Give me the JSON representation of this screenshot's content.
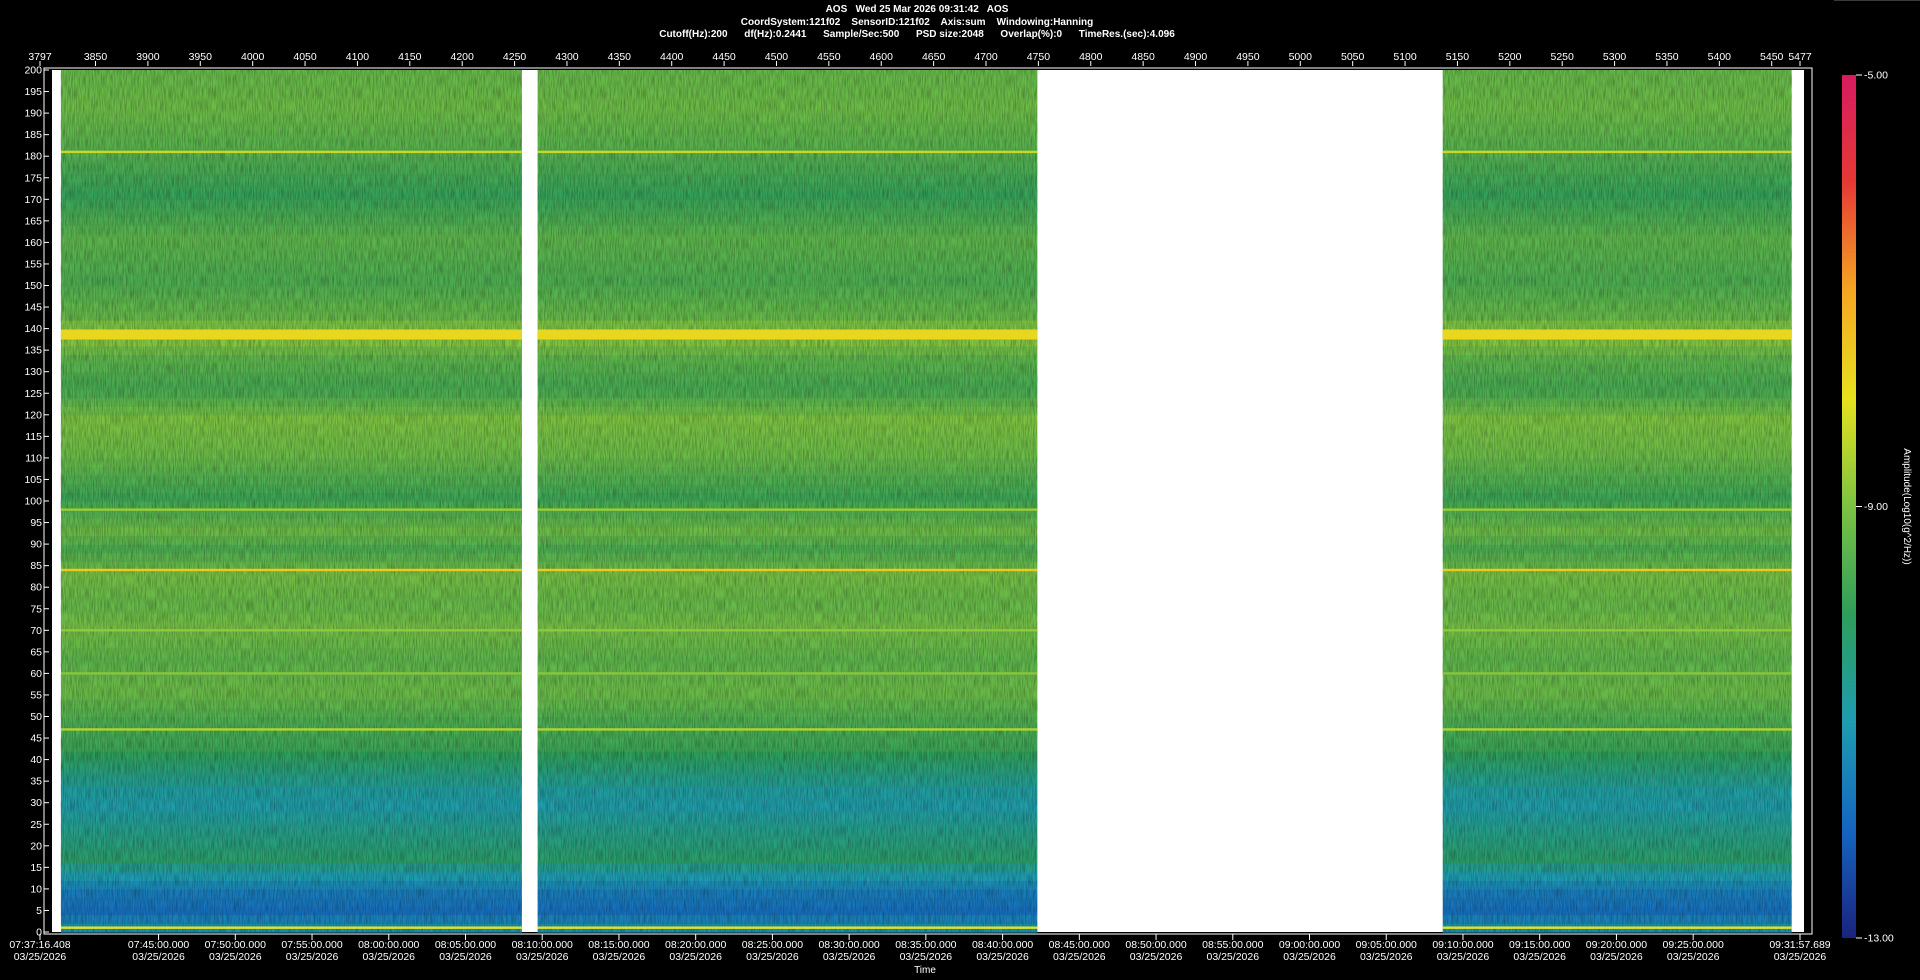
{
  "header": {
    "line1": "AOS   Wed 25 Mar 2026 09:31:42   AOS",
    "line2": "CoordSystem:121f02    SensorID:121f02    Axis:sum    Windowing:Hanning",
    "line3": "Cutoff(Hz):200      df(Hz):0.2441      Sample/Sec:500      PSD size:2048      Overlap(%):0      TimeRes.(sec):4.096"
  },
  "chart_data": {
    "type": "heatmap",
    "title": "AOS   Wed 25 Mar 2026 09:31:42   AOS",
    "xlabel": "Time",
    "ylabel": "",
    "colorbar_label": "Amplitude(Log10(g^2/Hz))",
    "ylim": [
      0,
      200
    ],
    "yticks": [
      0,
      5,
      10,
      15,
      20,
      25,
      30,
      35,
      40,
      45,
      50,
      55,
      60,
      65,
      70,
      75,
      80,
      85,
      90,
      95,
      100,
      105,
      110,
      115,
      120,
      125,
      130,
      135,
      140,
      145,
      150,
      155,
      160,
      165,
      170,
      175,
      180,
      185,
      190,
      195,
      200
    ],
    "top_axis": {
      "range": [
        3797,
        5477
      ],
      "ticks": [
        3797,
        3850,
        3900,
        3950,
        4000,
        4050,
        4100,
        4150,
        4200,
        4250,
        4300,
        4350,
        4400,
        4450,
        4500,
        4550,
        4600,
        4650,
        4700,
        4750,
        4800,
        4850,
        4900,
        4950,
        5000,
        5050,
        5100,
        5150,
        5200,
        5250,
        5300,
        5350,
        5400,
        5450,
        5477
      ]
    },
    "time_axis": {
      "start": "07:37:16.408",
      "end": "09:31:57.689",
      "ticks": [
        {
          "time": "07:37:16.408",
          "date": "03/25/2026"
        },
        {
          "time": "07:45:00.000",
          "date": "03/25/2026"
        },
        {
          "time": "07:50:00.000",
          "date": "03/25/2026"
        },
        {
          "time": "07:55:00.000",
          "date": "03/25/2026"
        },
        {
          "time": "08:00:00.000",
          "date": "03/25/2026"
        },
        {
          "time": "08:05:00.000",
          "date": "03/25/2026"
        },
        {
          "time": "08:10:00.000",
          "date": "03/25/2026"
        },
        {
          "time": "08:15:00.000",
          "date": "03/25/2026"
        },
        {
          "time": "08:20:00.000",
          "date": "03/25/2026"
        },
        {
          "time": "08:25:00.000",
          "date": "03/25/2026"
        },
        {
          "time": "08:30:00.000",
          "date": "03/25/2026"
        },
        {
          "time": "08:35:00.000",
          "date": "03/25/2026"
        },
        {
          "time": "08:40:00.000",
          "date": "03/25/2026"
        },
        {
          "time": "08:45:00.000",
          "date": "03/25/2026"
        },
        {
          "time": "08:50:00.000",
          "date": "03/25/2026"
        },
        {
          "time": "08:55:00.000",
          "date": "03/25/2026"
        },
        {
          "time": "09:00:00.000",
          "date": "03/25/2026"
        },
        {
          "time": "09:05:00.000",
          "date": "03/25/2026"
        },
        {
          "time": "09:10:00.000",
          "date": "03/25/2026"
        },
        {
          "time": "09:15:00.000",
          "date": "03/25/2026"
        },
        {
          "time": "09:20:00.000",
          "date": "03/25/2026"
        },
        {
          "time": "09:25:00.000",
          "date": "03/25/2026"
        },
        {
          "time": "09:31:57.689",
          "date": "03/25/2026"
        }
      ]
    },
    "data_segments": [
      [
        3817,
        4257
      ],
      [
        4272,
        4749
      ],
      [
        5136,
        5469
      ]
    ],
    "colorbar": {
      "range": [
        -13.0,
        -5.0
      ],
      "ticks": [
        {
          "value": -5.0,
          "label": "-5.00"
        },
        {
          "value": -9.0,
          "label": "-9.00"
        },
        {
          "value": -13.0,
          "label": "-13.00"
        }
      ],
      "colors": [
        "#1a237e",
        "#1565c0",
        "#1e9cb0",
        "#2e9e5b",
        "#7cc242",
        "#e6e21e",
        "#f5a623",
        "#e53935",
        "#d81b60"
      ]
    },
    "frequency_bands_hz": [
      {
        "hz": 181,
        "level": -8.3
      },
      {
        "hz": 139.5,
        "level": -7.8
      },
      {
        "hz": 98,
        "level": -8.7
      },
      {
        "hz": 84,
        "level": -7.6
      },
      {
        "hz": 70,
        "level": -8.8
      },
      {
        "hz": 60,
        "level": -8.9
      },
      {
        "hz": 47,
        "level": -8.5
      },
      {
        "hz": 1,
        "level": -8.0
      }
    ]
  }
}
